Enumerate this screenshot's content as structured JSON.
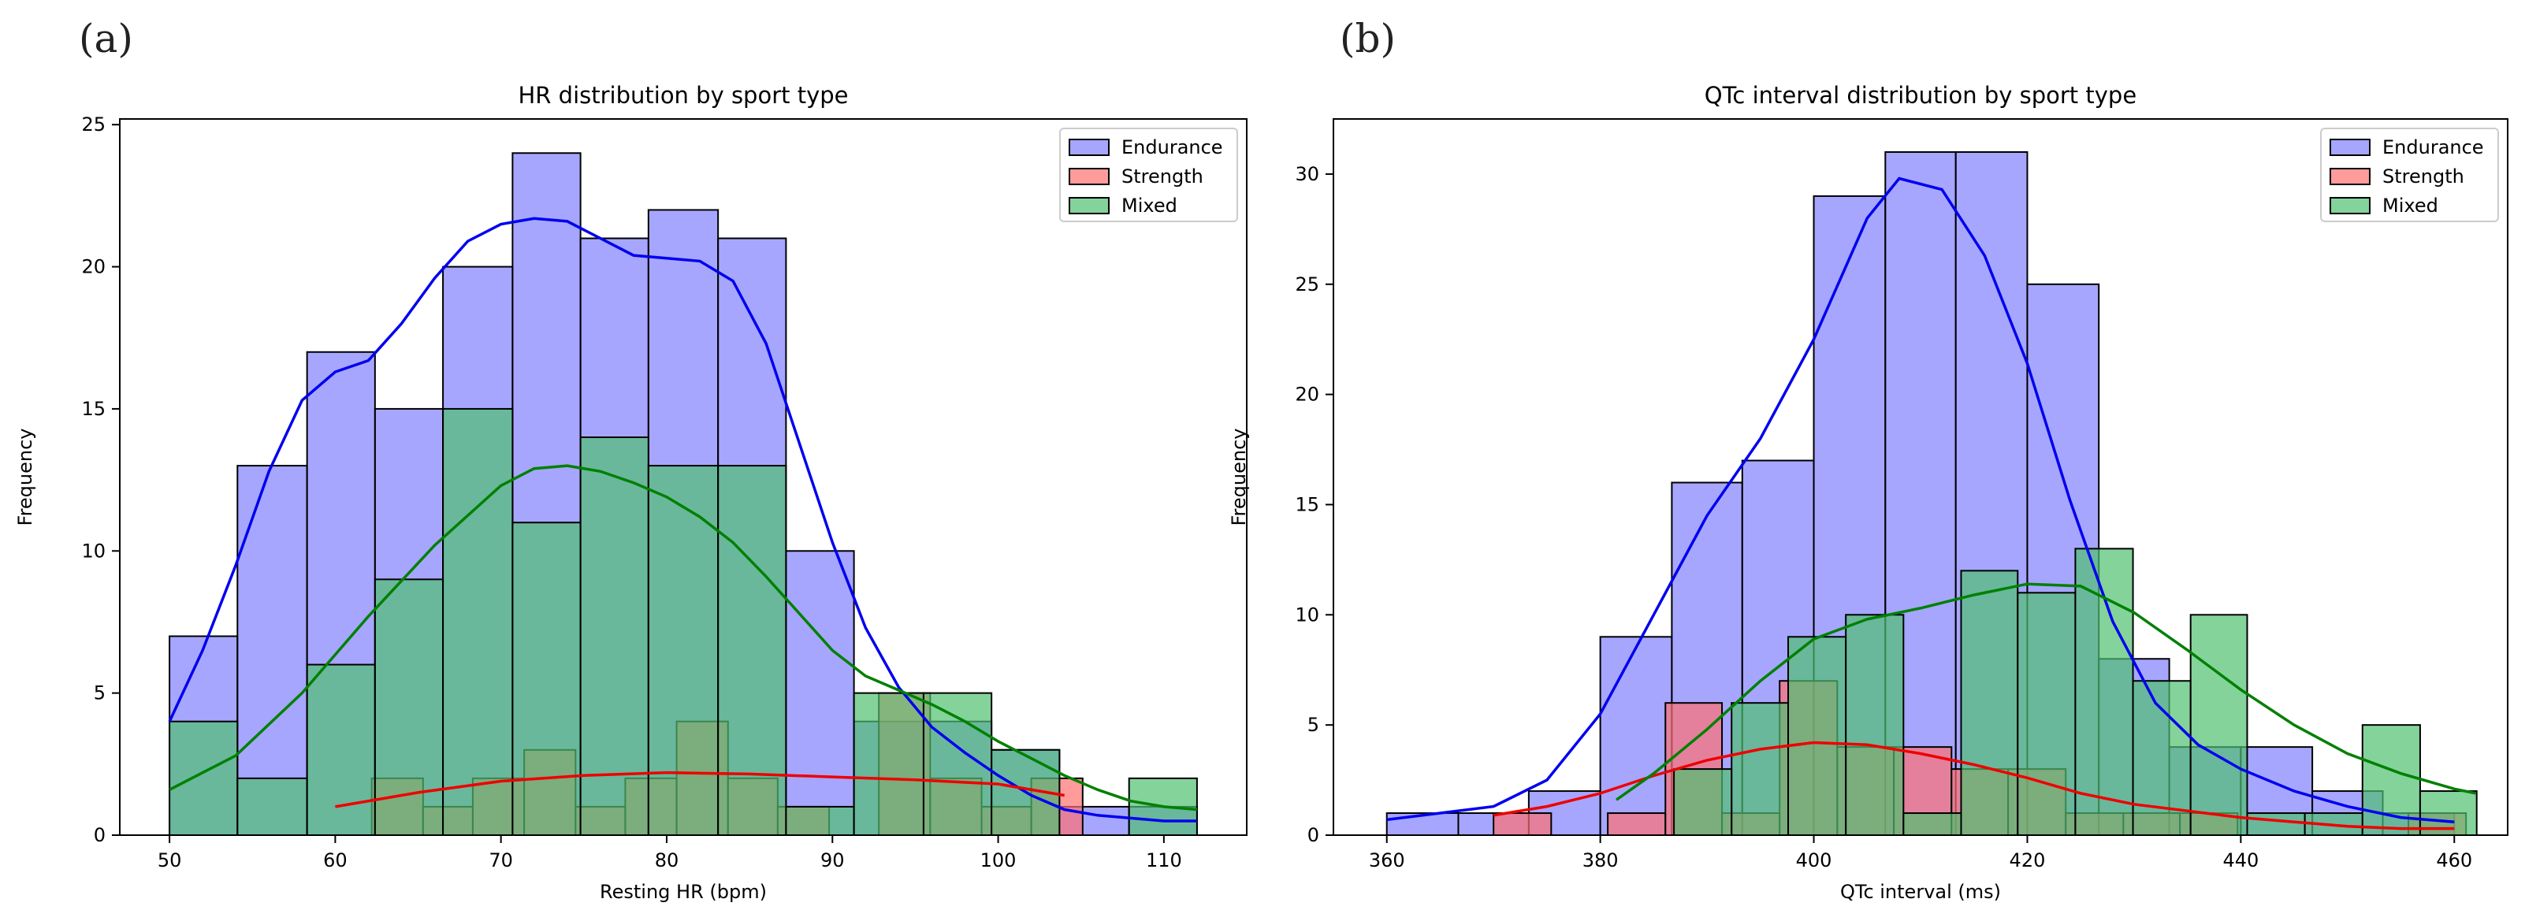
{
  "panel_labels": [
    "(a)",
    "(b)"
  ],
  "chart_data": [
    {
      "type": "histogram",
      "title": "HR distribution by sport type",
      "xlabel": "Resting HR (bpm)",
      "ylabel": "Frequency",
      "xlim": [
        47,
        115
      ],
      "ylim": [
        0,
        25.2
      ],
      "xticks": [
        50,
        60,
        70,
        80,
        90,
        100,
        110
      ],
      "yticks": [
        0,
        5,
        10,
        15,
        20,
        25
      ],
      "legend": {
        "position": "top-right",
        "entries": [
          "Endurance",
          "Strength",
          "Mixed"
        ]
      },
      "series": [
        {
          "name": "Endurance",
          "color": "#8080ff",
          "bins": [
            [
              50,
              54.1,
              7
            ],
            [
              54.1,
              58.3,
              13
            ],
            [
              58.3,
              62.4,
              17
            ],
            [
              62.4,
              66.5,
              15
            ],
            [
              66.5,
              70.7,
              20
            ],
            [
              70.7,
              74.8,
              24
            ],
            [
              74.8,
              78.9,
              21
            ],
            [
              78.9,
              83.1,
              22
            ],
            [
              83.1,
              87.2,
              21
            ],
            [
              87.2,
              91.3,
              10
            ],
            [
              91.3,
              95.5,
              4
            ],
            [
              95.5,
              99.6,
              4
            ],
            [
              99.6,
              103.7,
              3
            ],
            [
              103.7,
              107.9,
              1
            ],
            [
              107.9,
              112,
              1
            ]
          ],
          "kde": [
            [
              50,
              4
            ],
            [
              52,
              6.5
            ],
            [
              54,
              9.5
            ],
            [
              56,
              12.8
            ],
            [
              58,
              15.3
            ],
            [
              60,
              16.3
            ],
            [
              62,
              16.7
            ],
            [
              64,
              18
            ],
            [
              66,
              19.6
            ],
            [
              68,
              20.9
            ],
            [
              70,
              21.5
            ],
            [
              72,
              21.7
            ],
            [
              74,
              21.6
            ],
            [
              76,
              21
            ],
            [
              78,
              20.4
            ],
            [
              80,
              20.3
            ],
            [
              82,
              20.2
            ],
            [
              84,
              19.5
            ],
            [
              86,
              17.3
            ],
            [
              88,
              13.8
            ],
            [
              90,
              10.3
            ],
            [
              92,
              7.3
            ],
            [
              94,
              5.2
            ],
            [
              96,
              3.8
            ],
            [
              98,
              2.9
            ],
            [
              100,
              2.1
            ],
            [
              102,
              1.4
            ],
            [
              104,
              0.9
            ],
            [
              106,
              0.7
            ],
            [
              108,
              0.6
            ],
            [
              110,
              0.5
            ],
            [
              112,
              0.5
            ]
          ]
        },
        {
          "name": "Strength",
          "color": "#ff7070",
          "bins": [
            [
              60,
              62.2,
              0
            ],
            [
              62.2,
              65.3,
              2
            ],
            [
              65.3,
              68.3,
              1
            ],
            [
              68.3,
              71.4,
              2
            ],
            [
              71.4,
              74.5,
              3
            ],
            [
              74.5,
              77.5,
              1
            ],
            [
              77.5,
              80.6,
              2
            ],
            [
              80.6,
              83.7,
              4
            ],
            [
              83.7,
              86.7,
              2
            ],
            [
              86.7,
              89.8,
              1
            ],
            [
              89.8,
              92.8,
              0
            ],
            [
              92.8,
              95.9,
              5
            ],
            [
              95.9,
              99,
              2
            ],
            [
              99,
              102,
              1
            ],
            [
              102,
              105.1,
              2
            ]
          ],
          "kde": [
            [
              60,
              1
            ],
            [
              65,
              1.5
            ],
            [
              70,
              1.9
            ],
            [
              75,
              2.1
            ],
            [
              80,
              2.2
            ],
            [
              85,
              2.15
            ],
            [
              90,
              2.05
            ],
            [
              95,
              1.95
            ],
            [
              100,
              1.8
            ],
            [
              104,
              1.4
            ]
          ]
        },
        {
          "name": "Mixed",
          "color": "#50c070",
          "bins": [
            [
              50,
              54.1,
              4
            ],
            [
              54.1,
              58.3,
              2
            ],
            [
              58.3,
              62.4,
              6
            ],
            [
              62.4,
              66.5,
              9
            ],
            [
              66.5,
              70.7,
              15
            ],
            [
              70.7,
              74.8,
              11
            ],
            [
              74.8,
              78.9,
              14
            ],
            [
              78.9,
              83.1,
              13
            ],
            [
              83.1,
              87.2,
              13
            ],
            [
              87.2,
              91.3,
              1
            ],
            [
              91.3,
              95.5,
              5
            ],
            [
              95.5,
              99.6,
              5
            ],
            [
              99.6,
              103.7,
              3
            ],
            [
              103.7,
              107.9,
              0
            ],
            [
              107.9,
              112,
              2
            ]
          ],
          "kde": [
            [
              50,
              1.6
            ],
            [
              54,
              2.8
            ],
            [
              58,
              5
            ],
            [
              62,
              7.7
            ],
            [
              66,
              10.2
            ],
            [
              70,
              12.3
            ],
            [
              72,
              12.9
            ],
            [
              74,
              13
            ],
            [
              76,
              12.8
            ],
            [
              78,
              12.4
            ],
            [
              80,
              11.9
            ],
            [
              82,
              11.2
            ],
            [
              84,
              10.3
            ],
            [
              86,
              9.1
            ],
            [
              88,
              7.8
            ],
            [
              90,
              6.5
            ],
            [
              92,
              5.6
            ],
            [
              94,
              5.1
            ],
            [
              96,
              4.6
            ],
            [
              98,
              4
            ],
            [
              100,
              3.3
            ],
            [
              102,
              2.7
            ],
            [
              104,
              2.1
            ],
            [
              106,
              1.6
            ],
            [
              108,
              1.2
            ],
            [
              110,
              1
            ],
            [
              112,
              0.9
            ]
          ]
        }
      ]
    },
    {
      "type": "histogram",
      "title": "QTc interval distribution by sport type",
      "xlabel": "QTc interval (ms)",
      "ylabel": "Frequency",
      "xlim": [
        355,
        465
      ],
      "ylim": [
        0,
        32.5
      ],
      "xticks": [
        360,
        380,
        400,
        420,
        440,
        460
      ],
      "yticks": [
        0,
        5,
        10,
        15,
        20,
        25,
        30
      ],
      "legend": {
        "position": "top-right",
        "entries": [
          "Endurance",
          "Strength",
          "Mixed"
        ]
      },
      "series": [
        {
          "name": "Endurance",
          "color": "#8080ff",
          "bins": [
            [
              360,
              366.7,
              1
            ],
            [
              366.7,
              373.3,
              1
            ],
            [
              373.3,
              380,
              2
            ],
            [
              380,
              386.7,
              9
            ],
            [
              386.7,
              393.3,
              16
            ],
            [
              393.3,
              400,
              17
            ],
            [
              400,
              406.7,
              29
            ],
            [
              406.7,
              413.3,
              31
            ],
            [
              413.3,
              420,
              31
            ],
            [
              420,
              426.7,
              25
            ],
            [
              426.7,
              433.3,
              8
            ],
            [
              433.3,
              440,
              4
            ],
            [
              440,
              446.7,
              4
            ],
            [
              446.7,
              453.3,
              2
            ],
            [
              453.3,
              460,
              1
            ]
          ],
          "kde": [
            [
              360,
              0.7
            ],
            [
              365,
              1
            ],
            [
              370,
              1.3
            ],
            [
              375,
              2.5
            ],
            [
              380,
              5.5
            ],
            [
              385,
              10
            ],
            [
              390,
              14.5
            ],
            [
              395,
              18
            ],
            [
              400,
              22.5
            ],
            [
              405,
              28
            ],
            [
              408,
              29.8
            ],
            [
              412,
              29.3
            ],
            [
              416,
              26.3
            ],
            [
              420,
              21.4
            ],
            [
              424,
              15.2
            ],
            [
              428,
              9.7
            ],
            [
              432,
              6
            ],
            [
              436,
              4.1
            ],
            [
              440,
              3
            ],
            [
              445,
              2
            ],
            [
              450,
              1.3
            ],
            [
              455,
              0.8
            ],
            [
              460,
              0.6
            ]
          ]
        },
        {
          "name": "Strength",
          "color": "#ff7070",
          "bins": [
            [
              370,
              375.4,
              1
            ],
            [
              375.4,
              380.7,
              0
            ],
            [
              380.7,
              386.1,
              1
            ],
            [
              386.1,
              391.4,
              6
            ],
            [
              391.4,
              396.8,
              1
            ],
            [
              396.8,
              402.2,
              7
            ],
            [
              402.2,
              407.5,
              4
            ],
            [
              407.5,
              412.9,
              4
            ],
            [
              412.9,
              418.2,
              3
            ],
            [
              418.2,
              423.6,
              3
            ],
            [
              423.6,
              429,
              1
            ],
            [
              429,
              434.3,
              1
            ],
            [
              434.3,
              439.7,
              1
            ],
            [
              439.7,
              445,
              0
            ],
            [
              445,
              450.4,
              0
            ],
            [
              450.4,
              455.7,
              0
            ],
            [
              455.7,
              461.1,
              1
            ]
          ],
          "kde": [
            [
              370,
              0.9
            ],
            [
              375,
              1.3
            ],
            [
              380,
              1.9
            ],
            [
              385,
              2.7
            ],
            [
              390,
              3.4
            ],
            [
              395,
              3.9
            ],
            [
              400,
              4.2
            ],
            [
              405,
              4.1
            ],
            [
              410,
              3.7
            ],
            [
              415,
              3.2
            ],
            [
              420,
              2.6
            ],
            [
              425,
              1.9
            ],
            [
              430,
              1.4
            ],
            [
              435,
              1.1
            ],
            [
              440,
              0.8
            ],
            [
              445,
              0.6
            ],
            [
              450,
              0.4
            ],
            [
              455,
              0.3
            ],
            [
              460,
              0.3
            ]
          ]
        },
        {
          "name": "Mixed",
          "color": "#50c070",
          "bins": [
            [
              381.5,
              386.9,
              0
            ],
            [
              386.9,
              392.3,
              3
            ],
            [
              392.3,
              397.6,
              6
            ],
            [
              397.6,
              403,
              9
            ],
            [
              403,
              408.4,
              10
            ],
            [
              408.4,
              413.8,
              1
            ],
            [
              413.8,
              419.1,
              12
            ],
            [
              419.1,
              424.5,
              11
            ],
            [
              424.5,
              429.9,
              13
            ],
            [
              429.9,
              435.3,
              7
            ],
            [
              435.3,
              440.6,
              10
            ],
            [
              440.6,
              446,
              1
            ],
            [
              446,
              451.4,
              1
            ],
            [
              451.4,
              456.8,
              5
            ],
            [
              456.8,
              462.1,
              2
            ]
          ],
          "kde": [
            [
              381.5,
              1.6
            ],
            [
              385,
              2.8
            ],
            [
              390,
              4.8
            ],
            [
              395,
              7
            ],
            [
              400,
              8.9
            ],
            [
              405,
              9.8
            ],
            [
              410,
              10.3
            ],
            [
              415,
              10.9
            ],
            [
              420,
              11.4
            ],
            [
              425,
              11.3
            ],
            [
              430,
              10.1
            ],
            [
              435,
              8.4
            ],
            [
              440,
              6.6
            ],
            [
              445,
              5
            ],
            [
              450,
              3.7
            ],
            [
              455,
              2.8
            ],
            [
              460,
              2.1
            ],
            [
              462,
              1.9
            ]
          ]
        }
      ]
    }
  ]
}
